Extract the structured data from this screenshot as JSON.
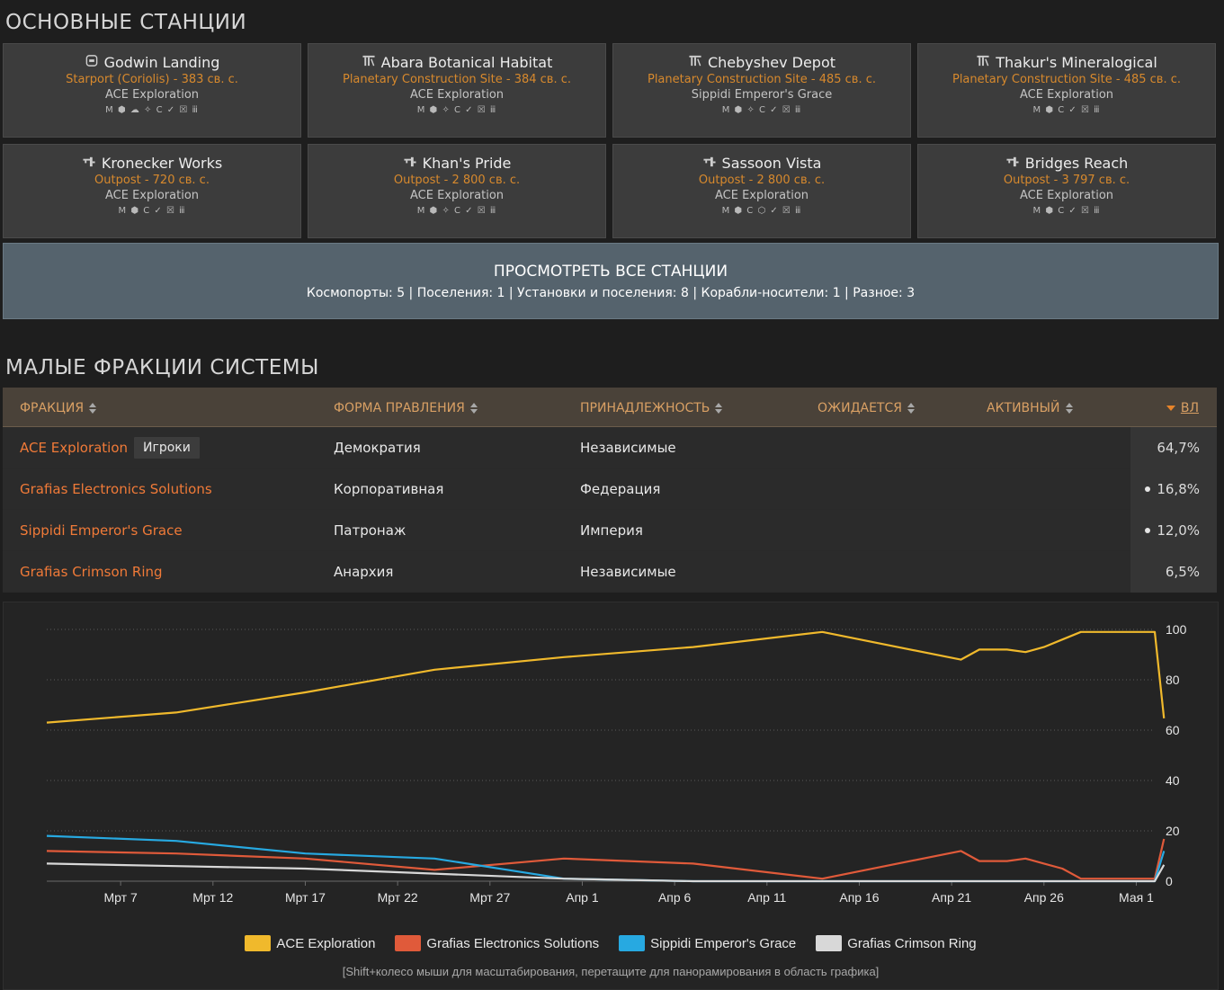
{
  "stations_section": {
    "title": "ОСНОВНЫЕ СТАНЦИИ",
    "stations": [
      {
        "name": "Godwin Landing",
        "icon": "coriolis-station-icon",
        "type": "Starport (Coriolis) - 383 св. с.",
        "owner": "ACE Exploration",
        "services": "M ⬢ ☁ ✧ C ✓ ☒ ⅲ"
      },
      {
        "name": "Abara Botanical Habitat",
        "icon": "construction-site-icon",
        "type": "Planetary Construction Site - 384 св. с.",
        "owner": "ACE Exploration",
        "services": "M ⬢ ✧ C ✓ ☒ ⅲ"
      },
      {
        "name": "Chebyshev Depot",
        "icon": "construction-site-icon",
        "type": "Planetary Construction Site - 485 св. с.",
        "owner": "Sippidi Emperor's Grace",
        "services": "M ⬢ ✧ C ✓ ☒ ⅲ"
      },
      {
        "name": "Thakur's Mineralogical",
        "icon": "construction-site-icon",
        "type": "Planetary Construction Site - 485 св. с.",
        "owner": "ACE Exploration",
        "services": "M ⬢ C ✓ ☒ ⅲ"
      },
      {
        "name": "Kronecker Works",
        "icon": "outpost-icon",
        "type": "Outpost - 720 св. с.",
        "owner": "ACE Exploration",
        "services": "M ⬢ C ✓ ☒ ⅲ"
      },
      {
        "name": "Khan's Pride",
        "icon": "outpost-icon",
        "type": "Outpost - 2 800 св. с.",
        "owner": "ACE Exploration",
        "services": "M ⬢ ✧ C ✓ ☒ ⅲ"
      },
      {
        "name": "Sassoon Vista",
        "icon": "outpost-icon",
        "type": "Outpost - 2 800 св. с.",
        "owner": "ACE Exploration",
        "services": "M ⬢ C ⬡ ✓ ☒ ⅲ"
      },
      {
        "name": "Bridges Reach",
        "icon": "outpost-icon",
        "type": "Outpost - 3 797 св. с.",
        "owner": "ACE Exploration",
        "services": "M ⬢ C ✓ ☒ ⅲ"
      }
    ],
    "view_all": {
      "title": "ПРОСМОТРЕТЬ ВСЕ СТАНЦИИ",
      "summary": "Космопорты: 5 | Поселения: 1 | Установки и поселения: 8 | Корабли-носители: 1 | Разное: 3"
    }
  },
  "factions_section": {
    "title": "МАЛЫЕ ФРАКЦИИ СИСТЕМЫ",
    "columns": {
      "faction": "ФРАКЦИЯ",
      "government": "ФОРМА ПРАВЛЕНИЯ",
      "allegiance": "ПРИНАДЛЕЖНОСТЬ",
      "pending": "ОЖИДАЕТСЯ",
      "active": "АКТИВНЫЙ",
      "influence": "ВЛ"
    },
    "rows": [
      {
        "name": "ACE Exploration",
        "badge": "Игроки",
        "government": "Демократия",
        "allegiance": "Независимые",
        "influence": "64,7%",
        "dot": false
      },
      {
        "name": "Grafias Electronics Solutions",
        "badge": "",
        "government": "Корпоративная",
        "allegiance": "Федерация",
        "influence": "16,8%",
        "dot": true
      },
      {
        "name": "Sippidi Emperor's Grace",
        "badge": "",
        "government": "Патронаж",
        "allegiance": "Империя",
        "influence": "12,0%",
        "dot": true
      },
      {
        "name": "Grafias Crimson Ring",
        "badge": "",
        "government": "Анархия",
        "allegiance": "Независимые",
        "influence": "6,5%",
        "dot": false
      }
    ]
  },
  "chart_data": {
    "type": "line",
    "ylim": [
      0,
      100
    ],
    "yticks": [
      0,
      20,
      40,
      60,
      80,
      100
    ],
    "xlim": [
      0,
      60
    ],
    "xticks": [
      {
        "label": "Мрт 7",
        "day": 4
      },
      {
        "label": "Мрт 12",
        "day": 9
      },
      {
        "label": "Мрт 17",
        "day": 14
      },
      {
        "label": "Мрт 22",
        "day": 19
      },
      {
        "label": "Мрт 27",
        "day": 24
      },
      {
        "label": "Апр 1",
        "day": 29
      },
      {
        "label": "Апр 6",
        "day": 34
      },
      {
        "label": "Апр 11",
        "day": 39
      },
      {
        "label": "Апр 16",
        "day": 44
      },
      {
        "label": "Апр 21",
        "day": 49
      },
      {
        "label": "Апр 26",
        "day": 54
      },
      {
        "label": "Мая 1",
        "day": 59
      }
    ],
    "series": [
      {
        "name": "ACE Exploration",
        "color": "#f0b92c",
        "x": [
          0,
          7,
          14,
          21,
          28,
          35,
          42,
          49.5,
          50.5,
          51,
          52,
          53,
          54,
          55,
          56,
          56.5,
          57,
          58,
          59,
          60,
          60.5
        ],
        "y": [
          63,
          67,
          75,
          84,
          89,
          93,
          99,
          88,
          92,
          92,
          92,
          91,
          93,
          96,
          99,
          99,
          99,
          99,
          99,
          99,
          64.7
        ]
      },
      {
        "name": "Grafias Electronics Solutions",
        "color": "#e05a3a",
        "x": [
          0,
          7,
          14,
          21,
          28,
          35,
          42,
          49.5,
          50.5,
          51,
          52,
          53,
          54,
          55,
          56,
          56.5,
          57,
          58,
          59,
          60,
          60.5
        ],
        "y": [
          12,
          11,
          9,
          4.5,
          9,
          7,
          1,
          12,
          8,
          8,
          8,
          9,
          7,
          5,
          1,
          1,
          1,
          1,
          1,
          1,
          16.8
        ]
      },
      {
        "name": "Sippidi Emperor's Grace",
        "color": "#27a9e1",
        "x": [
          0,
          7,
          14,
          21,
          28,
          35,
          42,
          49.5,
          53,
          56.5,
          60,
          60.5
        ],
        "y": [
          18,
          16,
          11,
          9,
          1,
          0,
          0,
          0,
          0,
          0,
          0,
          12.0
        ]
      },
      {
        "name": "Grafias Crimson Ring",
        "color": "#d8d8d8",
        "x": [
          0,
          7,
          14,
          21,
          28,
          35,
          42,
          49.5,
          56.5,
          60,
          60.5
        ],
        "y": [
          7,
          6,
          5,
          3,
          1,
          0,
          0,
          0,
          0,
          0,
          6.5
        ]
      }
    ]
  },
  "chart_hint": "[Shift+колесо мыши для масштабирования, перетащите для панорамирования в область графика]"
}
